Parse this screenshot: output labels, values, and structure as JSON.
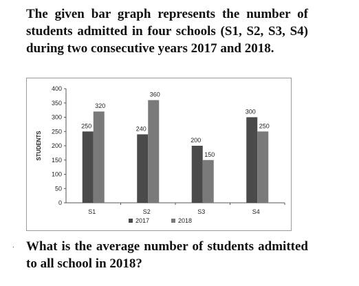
{
  "intro_text": "The given bar graph represents the number of students admitted in four schools (S1, S2, S3, S4) during two consecutive years 2017 and 2018.",
  "question_text": "What is the average number of students admitted to all school in 2018?",
  "bullet": ".",
  "colors": {
    "s2017": "#4a4a4a",
    "s2018": "#7a7a7a",
    "axis": "#555555",
    "grid": "#cccccc"
  },
  "chart_data": {
    "type": "bar",
    "categories": [
      "S1",
      "S2",
      "S3",
      "S4"
    ],
    "series": [
      {
        "name": "2017",
        "values": [
          250,
          240,
          200,
          300
        ]
      },
      {
        "name": "2018",
        "values": [
          320,
          360,
          150,
          250
        ]
      }
    ],
    "title": "",
    "xlabel": "",
    "ylabel": "STUDENTS",
    "ylim": [
      0,
      400
    ],
    "yticks": [
      0,
      50,
      100,
      150,
      200,
      250,
      300,
      350,
      400
    ],
    "grid": false,
    "legend": "bottom"
  }
}
